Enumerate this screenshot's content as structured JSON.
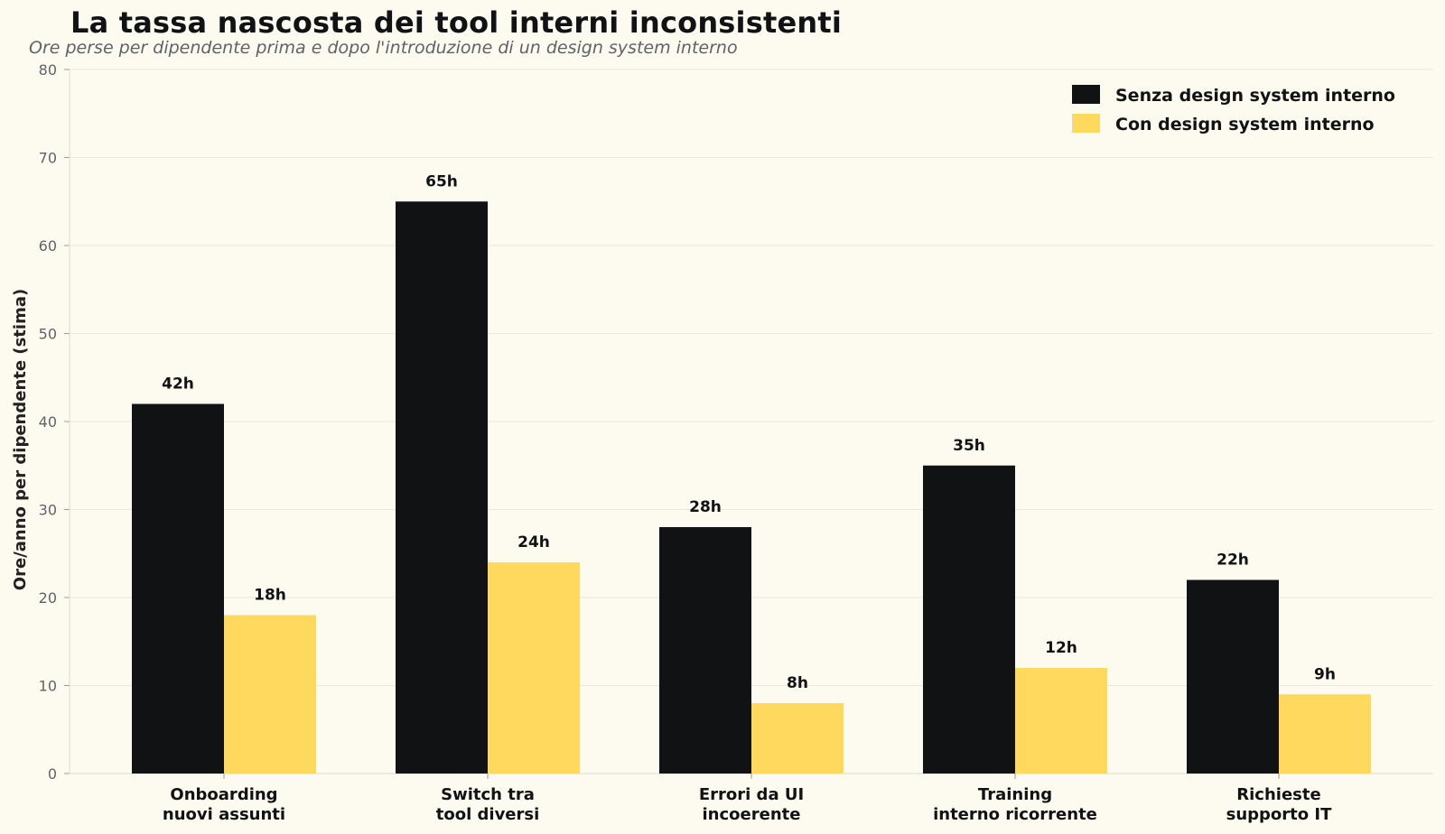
{
  "chart_data": {
    "type": "bar",
    "title": "La tassa nascosta dei tool interni inconsistenti",
    "subtitle": "Ore perse per dipendente prima e dopo l'introduzione di un design system interno",
    "ylabel": "Ore/anno per dipendente (stima)",
    "xlabel": "",
    "ylim": [
      0,
      80
    ],
    "yticks": [
      0,
      10,
      20,
      30,
      40,
      50,
      60,
      70,
      80
    ],
    "grid": true,
    "legend_position": "top-right",
    "value_suffix": "h",
    "categories": [
      [
        "Onboarding",
        "nuovi assunti"
      ],
      [
        "Switch tra",
        "tool diversi"
      ],
      [
        "Errori da UI",
        "incoerente"
      ],
      [
        "Training",
        "interno ricorrente"
      ],
      [
        "Richieste",
        "supporto IT"
      ]
    ],
    "series": [
      {
        "name": "Senza design system interno",
        "color": "#111214",
        "values": [
          42,
          65,
          28,
          35,
          22
        ]
      },
      {
        "name": "Con design system interno",
        "color": "#ffd95e",
        "values": [
          18,
          24,
          8,
          12,
          9
        ]
      }
    ]
  }
}
